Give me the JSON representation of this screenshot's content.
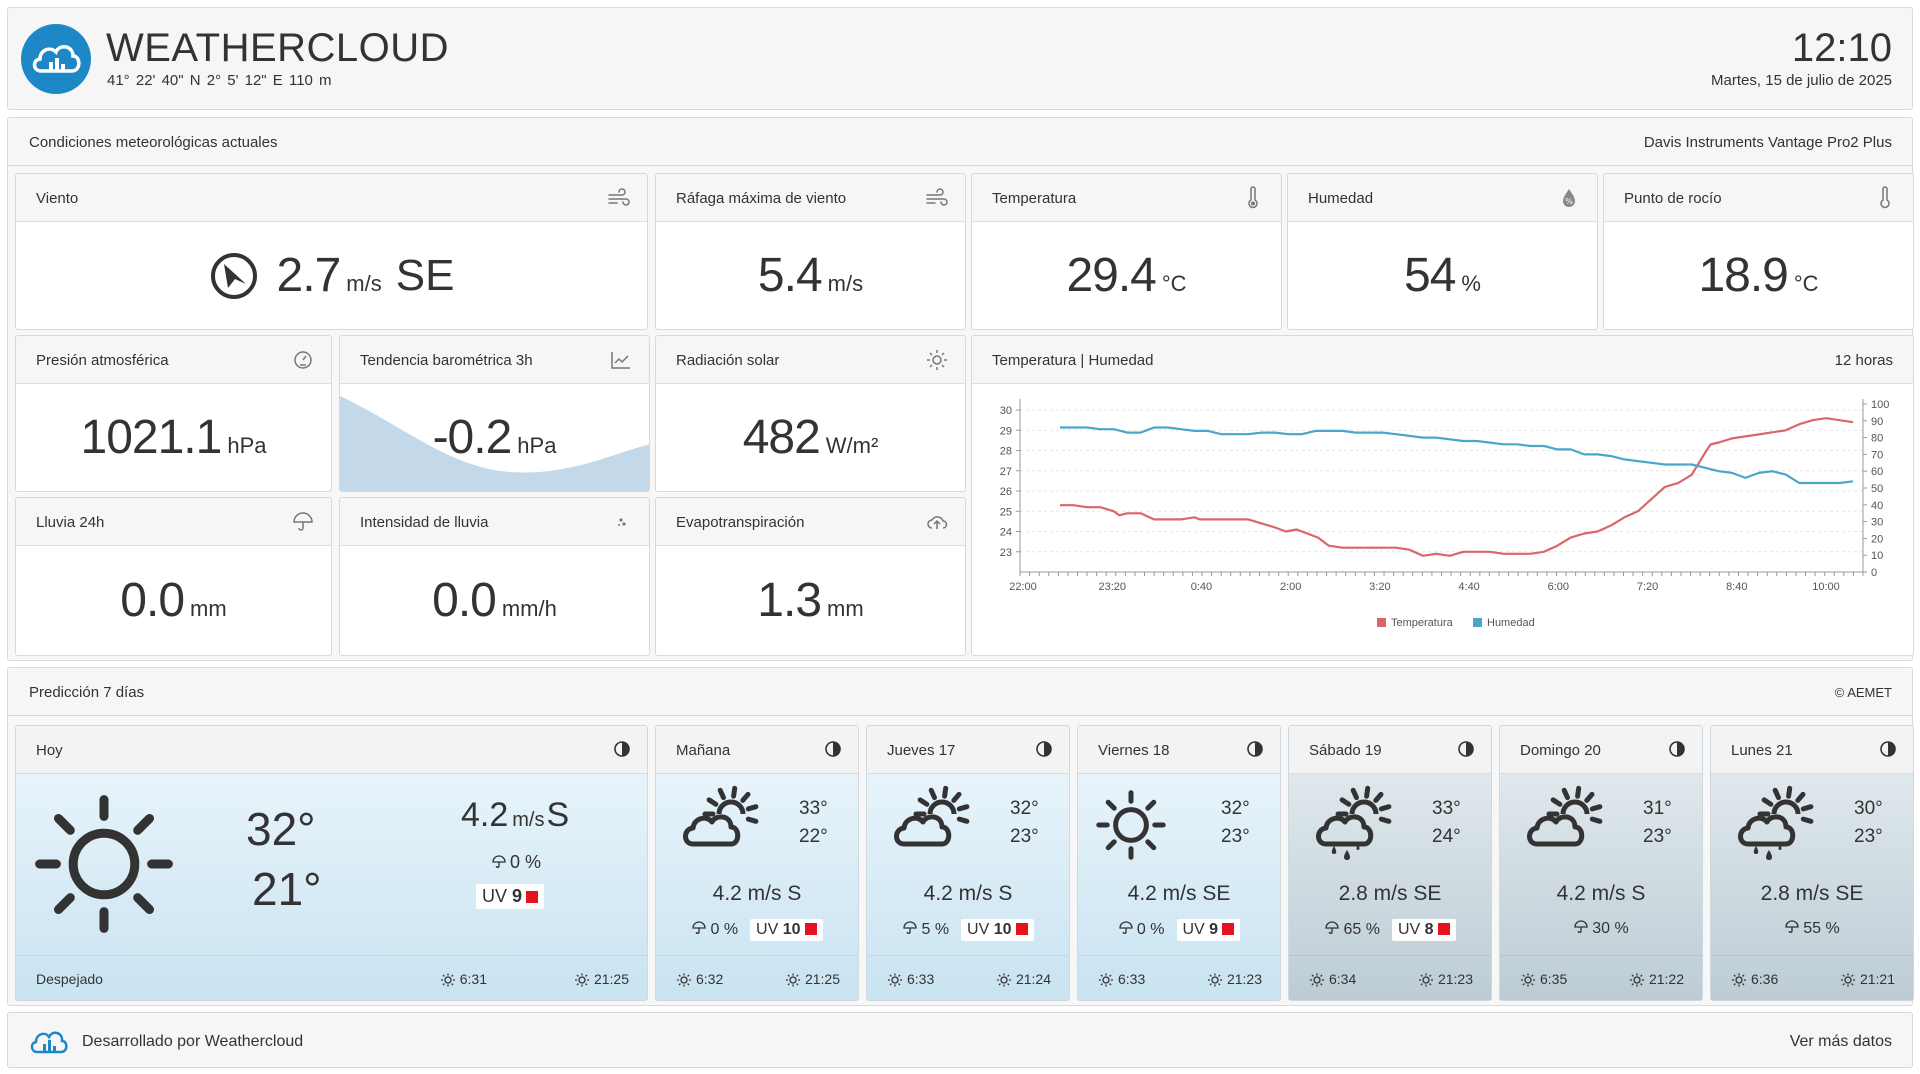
{
  "header": {
    "title": "WEATHERCLOUD",
    "coords": "41° 22' 40\" N   2° 5' 12\" E   110 m",
    "time": "12:10",
    "date": "Martes, 15 de julio de 2025"
  },
  "current": {
    "title": "Condiciones meteorológicas actuales",
    "device": "Davis Instruments Vantage Pro2 Plus",
    "wind": {
      "label": "Viento",
      "value": "2.7",
      "unit": "m/s",
      "dir": "SE",
      "icon": "wind-icon"
    },
    "gust": {
      "label": "Ráfaga máxima de viento",
      "value": "5.4",
      "unit": "m/s",
      "icon": "wind-icon"
    },
    "temp": {
      "label": "Temperatura",
      "value": "29.4",
      "unit": "°C",
      "icon": "thermometer-icon"
    },
    "hum": {
      "label": "Humedad",
      "value": "54",
      "unit": "%",
      "icon": "humidity-icon"
    },
    "dew": {
      "label": "Punto de rocío",
      "value": "18.9",
      "unit": "°C",
      "icon": "thermometer-icon"
    },
    "pressure": {
      "label": "Presión atmosférica",
      "value": "1021.1",
      "unit": "hPa",
      "icon": "gauge-icon"
    },
    "trend": {
      "label": "Tendencia barométrica 3h",
      "value": "-0.2",
      "unit": "hPa",
      "icon": "trend-chart-icon"
    },
    "solar": {
      "label": "Radiación solar",
      "value": "482",
      "unit": "W/m²",
      "icon": "sun-icon"
    },
    "rain": {
      "label": "Lluvia 24h",
      "value": "0.0",
      "unit": "mm",
      "icon": "umbrella-icon"
    },
    "rainrate": {
      "label": "Intensidad de lluvia",
      "value": "0.0",
      "unit": "mm/h",
      "icon": "raindrops-icon"
    },
    "evapo": {
      "label": "Evapotranspiración",
      "value": "1.3",
      "unit": "mm",
      "icon": "cloud-upload-icon"
    }
  },
  "chart": {
    "title": "Temperatura | Humedad",
    "range": "12 horas"
  },
  "chart_data": {
    "type": "line",
    "x_ticks": [
      "22:00",
      "23:20",
      "0:40",
      "2:00",
      "3:20",
      "4:40",
      "6:00",
      "7:20",
      "8:40",
      "10:00"
    ],
    "y_left": {
      "ticks": [
        23,
        24,
        25,
        26,
        27,
        28,
        29,
        30
      ],
      "range": [
        22,
        30.3
      ]
    },
    "y_right": {
      "ticks": [
        0,
        10,
        20,
        30,
        40,
        50,
        60,
        70,
        80,
        90,
        100
      ],
      "range": [
        0,
        100
      ]
    },
    "series": [
      {
        "name": "Temperatura",
        "color": "#d9666a",
        "axis": "left",
        "points": [
          [
            0,
            25.3
          ],
          [
            0.25,
            25.3
          ],
          [
            0.5,
            25.2
          ],
          [
            0.75,
            25.2
          ],
          [
            1.0,
            25.0
          ],
          [
            1.1,
            24.8
          ],
          [
            1.25,
            24.9
          ],
          [
            1.5,
            24.9
          ],
          [
            1.75,
            24.6
          ],
          [
            2.0,
            24.6
          ],
          [
            2.25,
            24.6
          ],
          [
            2.5,
            24.7
          ],
          [
            2.6,
            24.6
          ],
          [
            2.75,
            24.6
          ],
          [
            3.0,
            24.6
          ],
          [
            3.5,
            24.6
          ],
          [
            3.75,
            24.4
          ],
          [
            4.0,
            24.2
          ],
          [
            4.2,
            24.0
          ],
          [
            4.4,
            24.1
          ],
          [
            4.6,
            23.9
          ],
          [
            4.8,
            23.7
          ],
          [
            5.0,
            23.3
          ],
          [
            5.25,
            23.2
          ],
          [
            5.5,
            23.2
          ],
          [
            5.75,
            23.2
          ],
          [
            6.0,
            23.2
          ],
          [
            6.25,
            23.2
          ],
          [
            6.5,
            23.1
          ],
          [
            6.75,
            22.8
          ],
          [
            7.0,
            22.9
          ],
          [
            7.25,
            22.8
          ],
          [
            7.5,
            23.0
          ],
          [
            7.75,
            23.0
          ],
          [
            8.0,
            23.0
          ],
          [
            8.25,
            22.9
          ],
          [
            8.5,
            22.9
          ],
          [
            8.75,
            22.9
          ],
          [
            9.0,
            23.0
          ],
          [
            9.25,
            23.3
          ],
          [
            9.5,
            23.7
          ],
          [
            9.75,
            23.9
          ],
          [
            10.0,
            24.0
          ],
          [
            10.25,
            24.3
          ],
          [
            10.5,
            24.7
          ],
          [
            10.75,
            25.0
          ],
          [
            11.0,
            25.6
          ],
          [
            11.25,
            26.2
          ],
          [
            11.5,
            26.4
          ],
          [
            11.75,
            26.8
          ],
          [
            12.0,
            27.9
          ],
          [
            12.1,
            28.3
          ],
          [
            12.25,
            28.4
          ],
          [
            12.5,
            28.6
          ],
          [
            12.75,
            28.7
          ],
          [
            13.0,
            28.8
          ],
          [
            13.25,
            28.9
          ],
          [
            13.5,
            29.0
          ],
          [
            13.75,
            29.3
          ],
          [
            14.0,
            29.5
          ],
          [
            14.25,
            29.6
          ],
          [
            14.5,
            29.5
          ],
          [
            14.75,
            29.4
          ]
        ]
      },
      {
        "name": "Humedad",
        "color": "#4aa6c9",
        "axis": "right",
        "points": [
          [
            0,
            86
          ],
          [
            0.25,
            86
          ],
          [
            0.5,
            86
          ],
          [
            0.75,
            85
          ],
          [
            1.0,
            85
          ],
          [
            1.25,
            83
          ],
          [
            1.5,
            83
          ],
          [
            1.75,
            86
          ],
          [
            2.0,
            86
          ],
          [
            2.25,
            85
          ],
          [
            2.5,
            84
          ],
          [
            2.75,
            84
          ],
          [
            3.0,
            82
          ],
          [
            3.25,
            82
          ],
          [
            3.5,
            82
          ],
          [
            3.75,
            83
          ],
          [
            4.0,
            83
          ],
          [
            4.25,
            82
          ],
          [
            4.5,
            82
          ],
          [
            4.75,
            84
          ],
          [
            5.0,
            84
          ],
          [
            5.25,
            84
          ],
          [
            5.5,
            83
          ],
          [
            5.75,
            83
          ],
          [
            6.0,
            83
          ],
          [
            6.25,
            82
          ],
          [
            6.5,
            81
          ],
          [
            6.75,
            80
          ],
          [
            7.0,
            80
          ],
          [
            7.25,
            79
          ],
          [
            7.5,
            78
          ],
          [
            7.75,
            78
          ],
          [
            8.0,
            77
          ],
          [
            8.25,
            76
          ],
          [
            8.5,
            76
          ],
          [
            8.75,
            75
          ],
          [
            9.0,
            75
          ],
          [
            9.25,
            73
          ],
          [
            9.5,
            73
          ],
          [
            9.75,
            70
          ],
          [
            10.0,
            70
          ],
          [
            10.25,
            69
          ],
          [
            10.5,
            67
          ],
          [
            10.75,
            66
          ],
          [
            11.0,
            65
          ],
          [
            11.25,
            64
          ],
          [
            11.5,
            64
          ],
          [
            11.75,
            64
          ],
          [
            12.0,
            62
          ],
          [
            12.25,
            60
          ],
          [
            12.5,
            59
          ],
          [
            12.75,
            56
          ],
          [
            13.0,
            59
          ],
          [
            13.25,
            60
          ],
          [
            13.5,
            58
          ],
          [
            13.75,
            53
          ],
          [
            14.0,
            53
          ],
          [
            14.25,
            53
          ],
          [
            14.5,
            53
          ],
          [
            14.75,
            54
          ]
        ]
      }
    ],
    "legend": [
      "Temperatura",
      "Humedad"
    ]
  },
  "forecast": {
    "title": "Predicción 7 días",
    "source": "© AEMET",
    "days": [
      {
        "day": "Hoy",
        "icon": "sun-icon",
        "tmax": "32°",
        "tmin": "21°",
        "wind": "4.2",
        "wind_unit": "m/s",
        "wind_dir": "S",
        "rain": "0 %",
        "uv": "9",
        "cond": "Despejado",
        "sunrise": "6:31",
        "sunset": "21:25"
      },
      {
        "day": "Mañana",
        "icon": "sun-cloud-icon",
        "tmax": "33°",
        "tmin": "22°",
        "wind": "4.2 m/s S",
        "rain": "0 %",
        "uv": "10",
        "sunrise": "6:32",
        "sunset": "21:25"
      },
      {
        "day": "Jueves 17",
        "icon": "sun-cloud-icon",
        "tmax": "32°",
        "tmin": "23°",
        "wind": "4.2 m/s S",
        "rain": "5 %",
        "uv": "10",
        "sunrise": "6:33",
        "sunset": "21:24"
      },
      {
        "day": "Viernes 18",
        "icon": "sun-icon",
        "tmax": "32°",
        "tmin": "23°",
        "wind": "4.2 m/s SE",
        "rain": "0 %",
        "uv": "9",
        "sunrise": "6:33",
        "sunset": "21:23"
      },
      {
        "day": "Sábado 19",
        "icon": "sun-cloud-rain-icon",
        "tmax": "33°",
        "tmin": "24°",
        "wind": "2.8 m/s SE",
        "rain": "65 %",
        "uv": "8",
        "sunrise": "6:34",
        "sunset": "21:23"
      },
      {
        "day": "Domingo 20",
        "icon": "sun-cloud-icon",
        "tmax": "31°",
        "tmin": "23°",
        "wind": "4.2 m/s S",
        "rain": "30 %",
        "uv": "",
        "sunrise": "6:35",
        "sunset": "21:22"
      },
      {
        "day": "Lunes 21",
        "icon": "sun-cloud-rain-icon",
        "tmax": "30°",
        "tmin": "23°",
        "wind": "2.8 m/s SE",
        "rain": "55 %",
        "uv": "",
        "sunrise": "6:36",
        "sunset": "21:21"
      }
    ]
  },
  "footer": {
    "text": "Desarrollado por Weathercloud",
    "link": "Ver más datos"
  }
}
